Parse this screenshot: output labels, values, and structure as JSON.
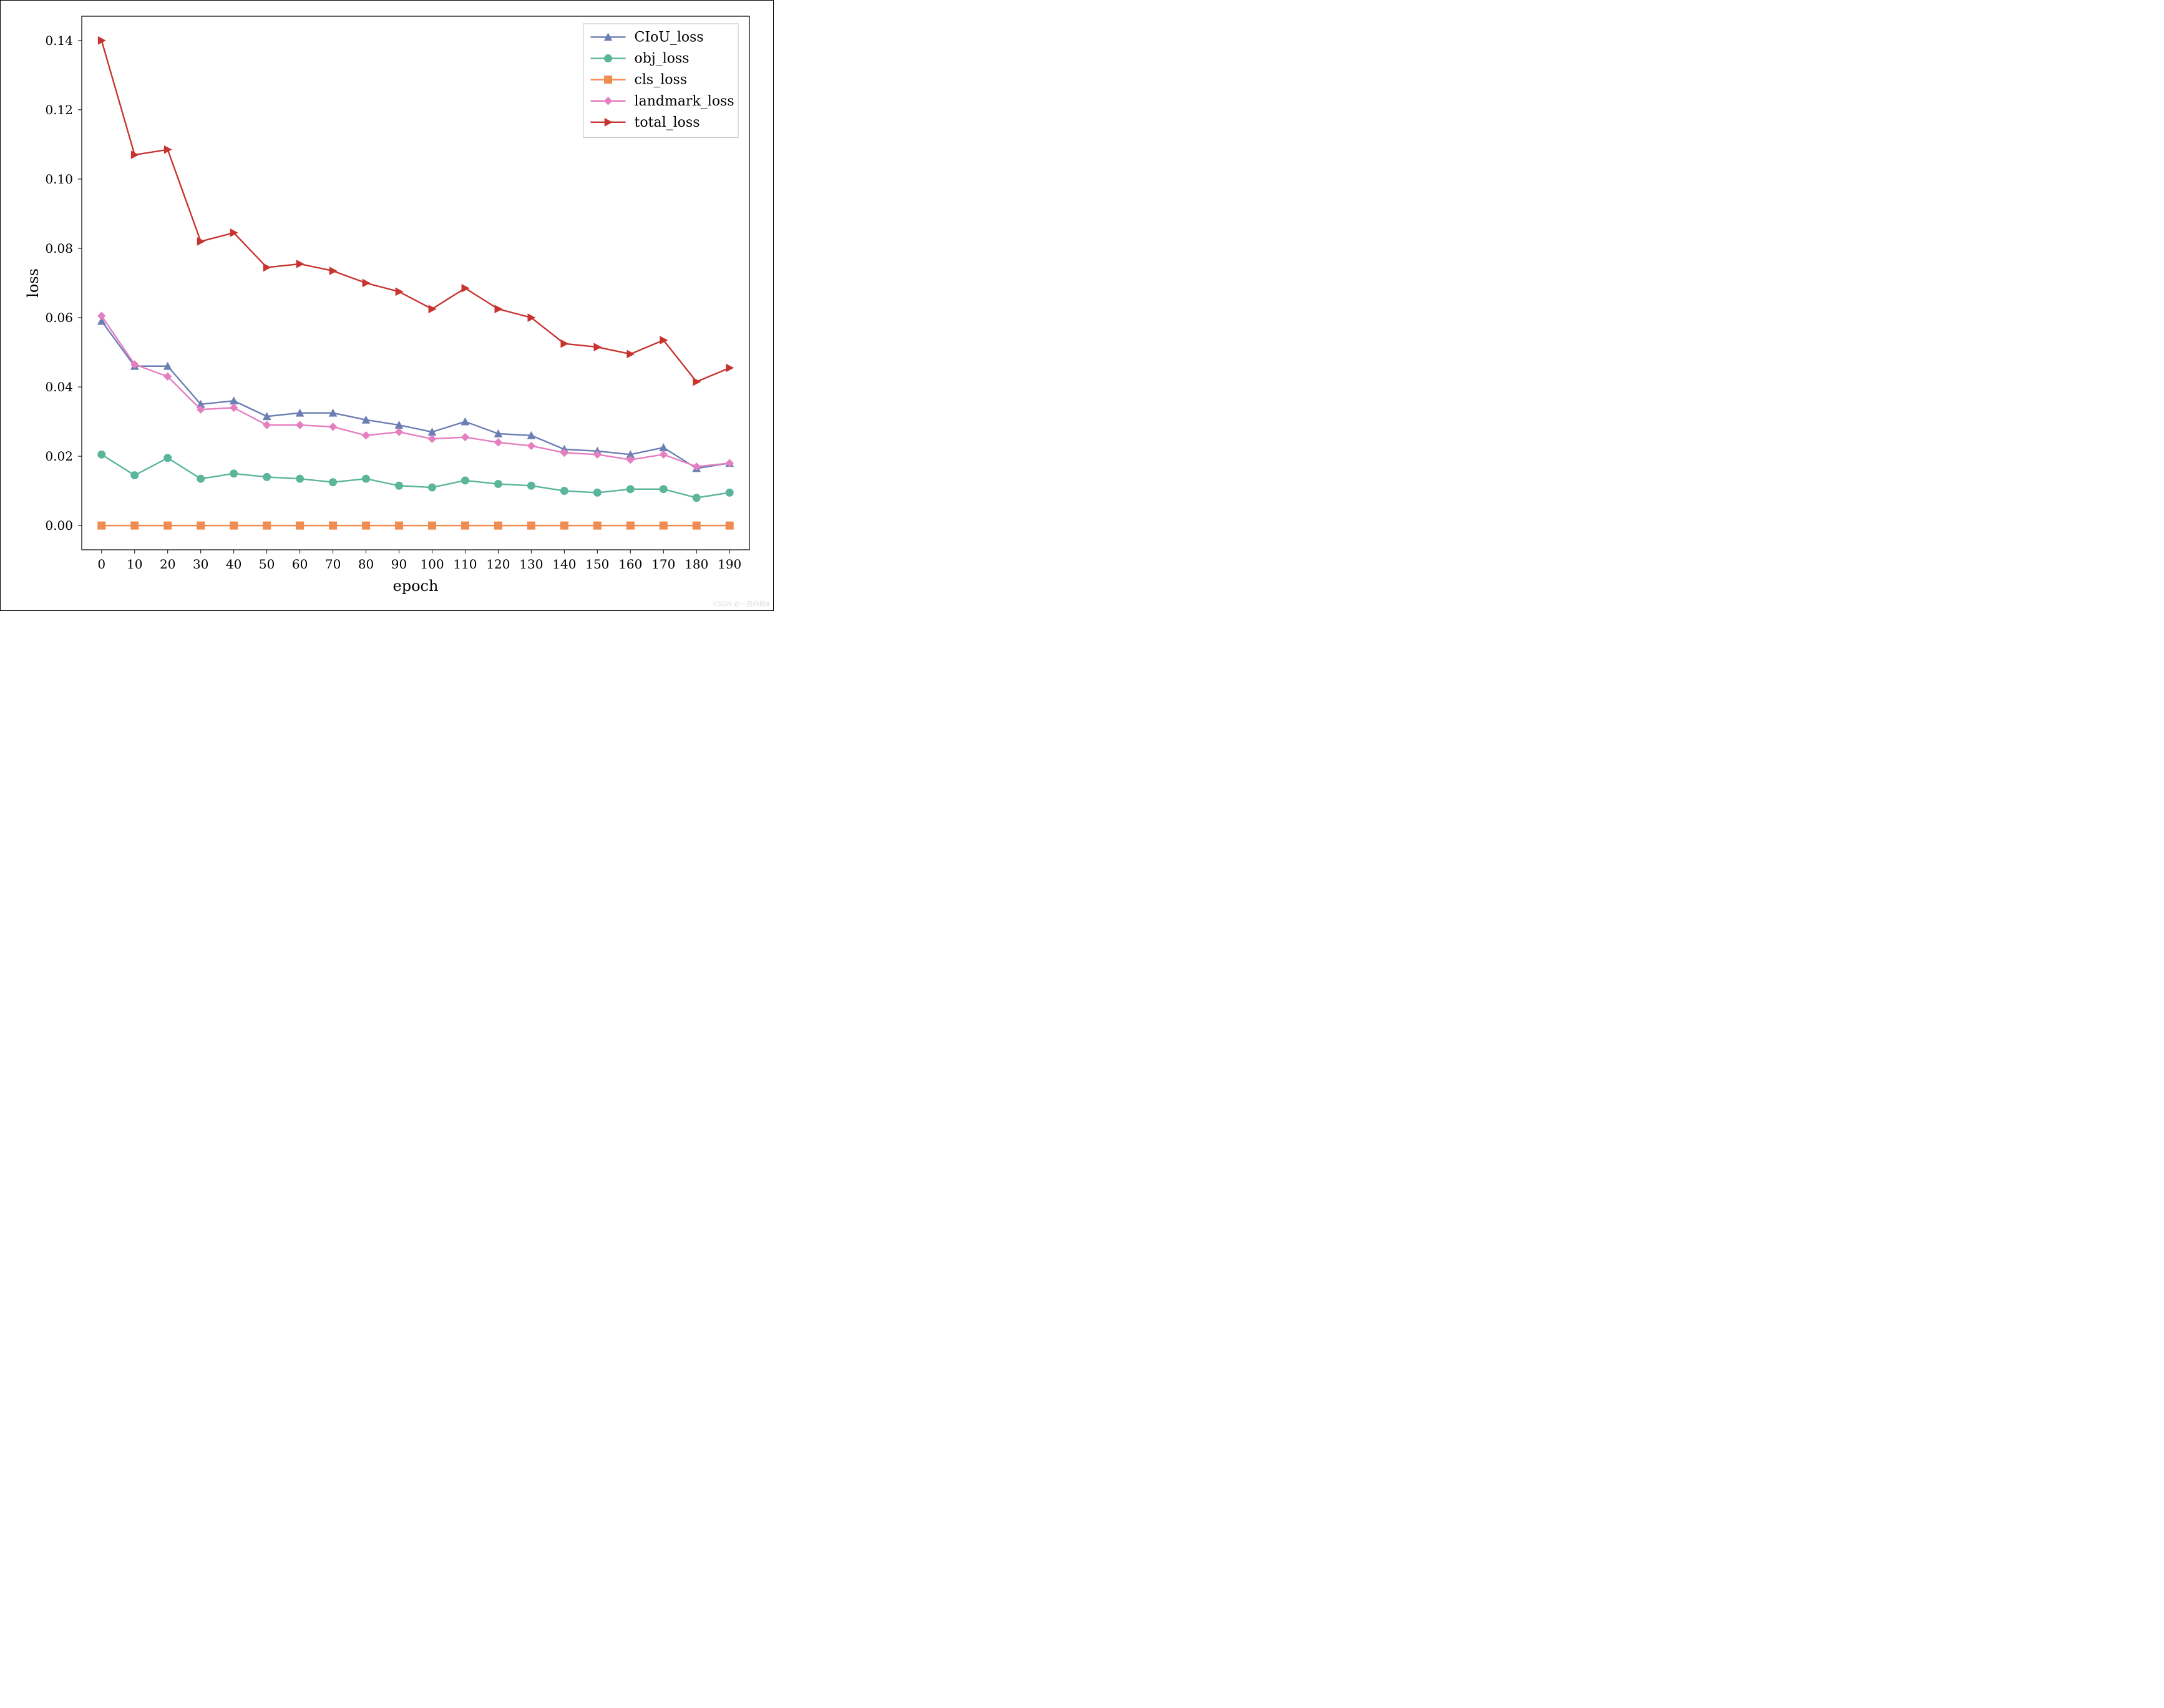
{
  "chart": {
    "type": "line",
    "background_color": "#ffffff",
    "plot_border_color": "#000000",
    "plot_border_width": 1.2,
    "font_family": "DejaVu Serif, Times New Roman, serif",
    "xlabel": "epoch",
    "ylabel": "loss",
    "label_fontsize": 24,
    "tick_fontsize": 20,
    "tick_color": "#000000",
    "x": [
      0,
      10,
      20,
      30,
      40,
      50,
      60,
      70,
      80,
      90,
      100,
      110,
      120,
      130,
      140,
      150,
      160,
      170,
      180,
      190
    ],
    "xlim": [
      -6,
      196
    ],
    "ylim": [
      -0.007,
      0.147
    ],
    "xticks": [
      0,
      10,
      20,
      30,
      40,
      50,
      60,
      70,
      80,
      90,
      100,
      110,
      120,
      130,
      140,
      150,
      160,
      170,
      180,
      190
    ],
    "yticks": [
      0.0,
      0.02,
      0.04,
      0.06,
      0.08,
      0.1,
      0.12,
      0.14
    ],
    "ytick_labels": [
      "0.00",
      "0.02",
      "0.04",
      "0.06",
      "0.08",
      "0.10",
      "0.12",
      "0.14"
    ],
    "line_width": 2.4,
    "marker_size": 6,
    "series": [
      {
        "name": "CIoU_loss",
        "color": "#6b7fb3",
        "marker": "triangle-up",
        "y": [
          0.059,
          0.046,
          0.046,
          0.035,
          0.036,
          0.0315,
          0.0325,
          0.0325,
          0.0305,
          0.029,
          0.027,
          0.03,
          0.0265,
          0.026,
          0.022,
          0.0215,
          0.0205,
          0.0225,
          0.0165,
          0.018
        ]
      },
      {
        "name": "obj_loss",
        "color": "#5bb59a",
        "marker": "circle",
        "y": [
          0.0205,
          0.0145,
          0.0195,
          0.0135,
          0.015,
          0.014,
          0.0135,
          0.0125,
          0.0135,
          0.0115,
          0.011,
          0.013,
          0.012,
          0.0115,
          0.01,
          0.0095,
          0.0105,
          0.0105,
          0.008,
          0.0095
        ]
      },
      {
        "name": "cls_loss",
        "color": "#f08c52",
        "marker": "square",
        "y": [
          0,
          0,
          0,
          0,
          0,
          0,
          0,
          0,
          0,
          0,
          0,
          0,
          0,
          0,
          0,
          0,
          0,
          0,
          0,
          0
        ]
      },
      {
        "name": "landmark_loss",
        "color": "#e57fc0",
        "marker": "diamond",
        "y": [
          0.0605,
          0.0465,
          0.043,
          0.0335,
          0.034,
          0.029,
          0.029,
          0.0285,
          0.026,
          0.027,
          0.025,
          0.0255,
          0.024,
          0.023,
          0.021,
          0.0205,
          0.019,
          0.0205,
          0.017,
          0.018
        ]
      },
      {
        "name": "total_loss",
        "color": "#c73430",
        "marker": "triangle-right",
        "y": [
          0.14,
          0.107,
          0.1085,
          0.082,
          0.0845,
          0.0745,
          0.0755,
          0.0735,
          0.07,
          0.0675,
          0.0625,
          0.0685,
          0.0625,
          0.06,
          0.0525,
          0.0515,
          0.0495,
          0.0535,
          0.0415,
          0.0455
        ]
      }
    ],
    "legend": {
      "position": "top-right",
      "fontsize": 22,
      "border_color": "#bfbfbf",
      "border_width": 1,
      "background": "#ffffff"
    }
  },
  "watermark": "CSDN @一直向前9"
}
